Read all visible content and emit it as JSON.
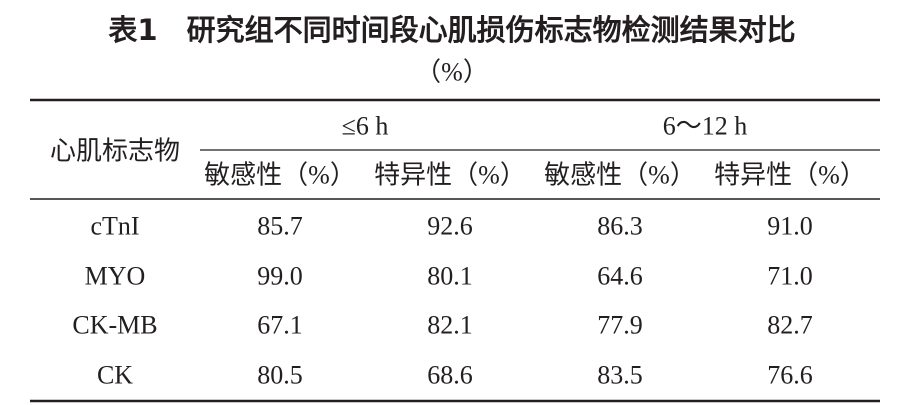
{
  "title": "表1　研究组不同时间段心肌损伤标志物检测结果对比",
  "subtitle": "（%）",
  "table": {
    "row_header": "心肌标志物",
    "groups": [
      "≤6 h",
      "6～12 h"
    ],
    "columns": [
      "敏感性（%）",
      "特异性（%）",
      "敏感性（%）",
      "特异性（%）"
    ],
    "rows": [
      [
        "cTnI",
        "85.7",
        "92.6",
        "86.3",
        "91.0"
      ],
      [
        "MYO",
        "99.0",
        "80.1",
        "64.6",
        "71.0"
      ],
      [
        "CK-MB",
        "67.1",
        "82.1",
        "77.9",
        "82.7"
      ],
      [
        "CK",
        "80.5",
        "68.6",
        "83.5",
        "76.6"
      ]
    ]
  }
}
